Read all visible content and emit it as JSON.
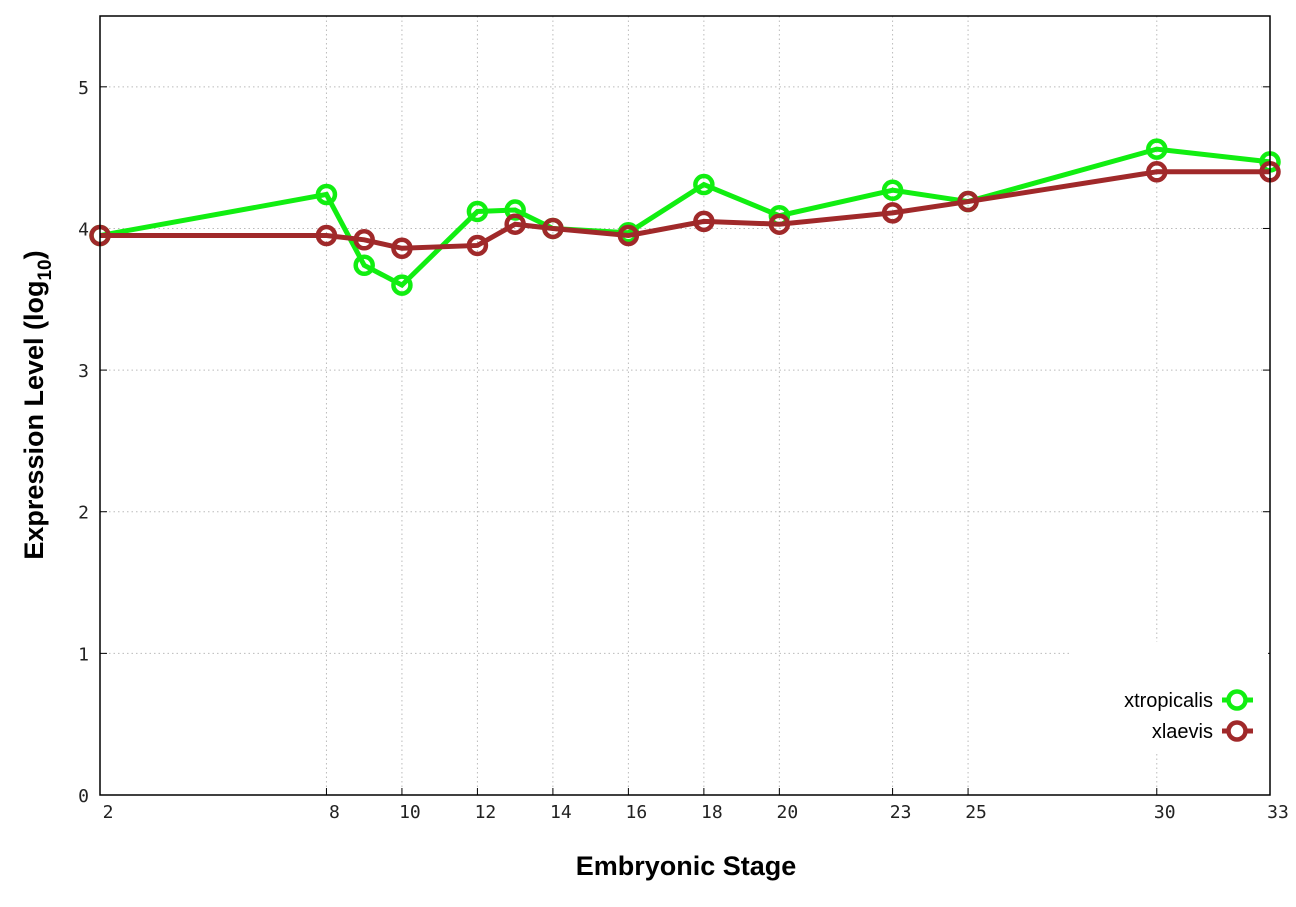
{
  "chart_data": {
    "type": "line",
    "title": "",
    "xlabel": "Embryonic Stage",
    "ylabel": "Expression Level (log10)",
    "ylabel_main": "Expression Level (log",
    "ylabel_sub": "10",
    "ylabel_end": ")",
    "xlim": [
      2,
      33
    ],
    "ylim": [
      0,
      5.5
    ],
    "x_ticks": [
      2,
      8,
      10,
      12,
      14,
      16,
      18,
      20,
      23,
      25,
      30,
      33
    ],
    "y_ticks": [
      0,
      1,
      2,
      3,
      4,
      5
    ],
    "grid": true,
    "legend_position": "bottom-right",
    "x": [
      2,
      8,
      9,
      10,
      12,
      13,
      14,
      16,
      18,
      20,
      23,
      25,
      30,
      33
    ],
    "series": [
      {
        "name": "xtropicalis",
        "color": "#11ee11",
        "values": [
          3.95,
          4.24,
          3.74,
          3.6,
          4.12,
          4.13,
          4.0,
          3.97,
          4.31,
          4.09,
          4.27,
          4.19,
          4.56,
          4.47
        ]
      },
      {
        "name": "xlaevis",
        "color": "#a0292a",
        "values": [
          3.95,
          3.95,
          3.92,
          3.86,
          3.88,
          4.03,
          4.0,
          3.95,
          4.05,
          4.03,
          4.11,
          4.19,
          4.4,
          4.4
        ]
      }
    ]
  }
}
